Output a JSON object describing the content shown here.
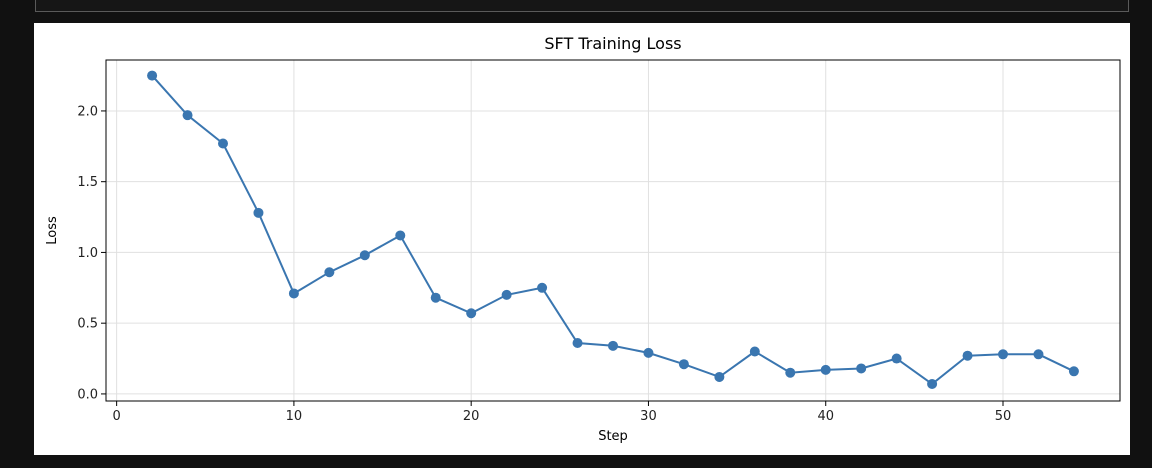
{
  "colors": {
    "background": "#111111",
    "figure": "#ffffff",
    "series": "#3a76b0",
    "grid": "#e0e0e0"
  },
  "chart_data": {
    "type": "line",
    "title": "SFT Training Loss",
    "xlabel": "Step",
    "ylabel": "Loss",
    "xlim": [
      -0.6,
      56.6
    ],
    "ylim": [
      -0.05,
      2.36
    ],
    "xticks": [
      0,
      10,
      20,
      30,
      40,
      50
    ],
    "xtick_labels": [
      "0",
      "10",
      "20",
      "30",
      "40",
      "50"
    ],
    "yticks": [
      0.0,
      0.5,
      1.0,
      1.5,
      2.0
    ],
    "ytick_labels": [
      "0.0",
      "0.5",
      "1.0",
      "1.5",
      "2.0"
    ],
    "grid": true,
    "markers": "circle",
    "x": [
      2,
      4,
      6,
      8,
      10,
      12,
      14,
      16,
      18,
      20,
      22,
      24,
      26,
      28,
      30,
      32,
      34,
      36,
      38,
      40,
      42,
      44,
      46,
      48,
      50,
      52,
      54
    ],
    "y": [
      2.25,
      1.97,
      1.77,
      1.28,
      0.71,
      0.86,
      0.98,
      1.12,
      0.68,
      0.57,
      0.7,
      0.75,
      0.36,
      0.34,
      0.29,
      0.21,
      0.12,
      0.3,
      0.15,
      0.17,
      0.18,
      0.25,
      0.07,
      0.27,
      0.28,
      0.28,
      0.16
    ]
  }
}
